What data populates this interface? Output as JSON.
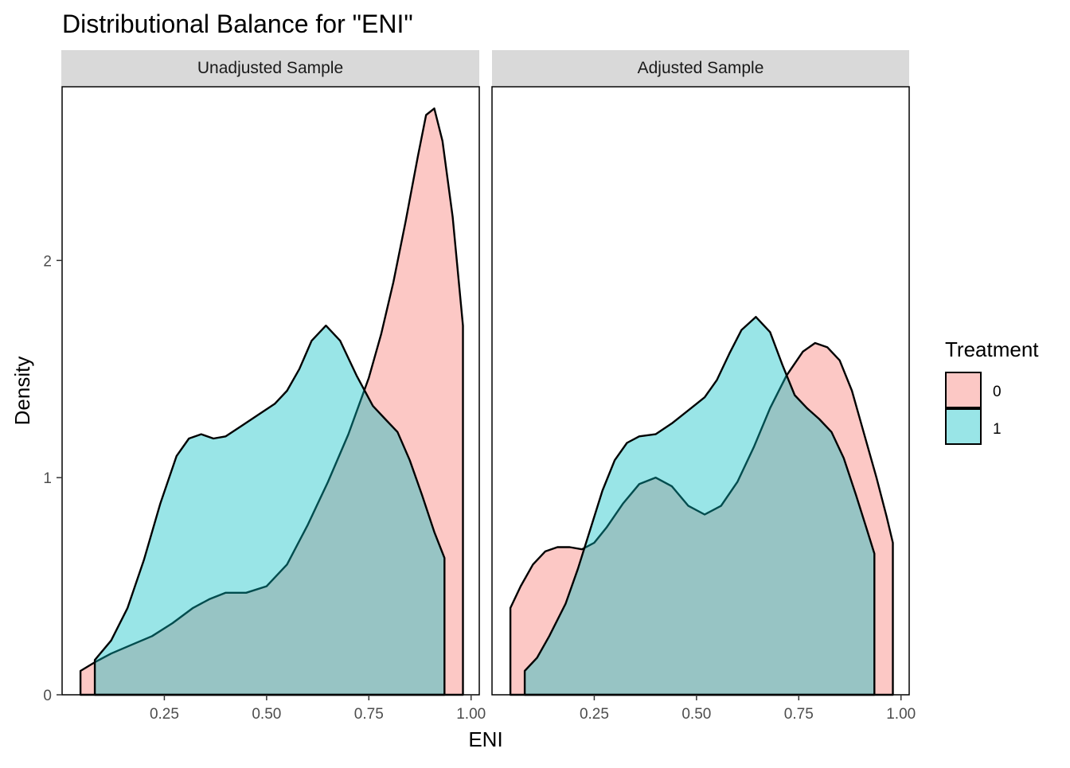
{
  "title": "Distributional Balance for \"ENI\"",
  "chart_data": {
    "type": "area",
    "title": "Distributional Balance for \"ENI\"",
    "xlabel": "ENI",
    "ylabel": "Density",
    "xlim": [
      0.0,
      1.02
    ],
    "ylim": [
      0,
      2.8
    ],
    "x_ticks": [
      0.25,
      0.5,
      0.75,
      1.0
    ],
    "x_tick_labels": [
      "0.25",
      "0.50",
      "0.75",
      "1.00"
    ],
    "y_ticks": [
      0,
      1,
      2
    ],
    "y_tick_labels": [
      "0",
      "1",
      "2"
    ],
    "legend": {
      "title": "Treatment",
      "position": "right",
      "entries": [
        {
          "label": "0",
          "color": "#F8766D"
        },
        {
          "label": "1",
          "color": "#00BFC4"
        }
      ]
    },
    "panels": [
      {
        "label": "Unadjusted Sample",
        "series": [
          {
            "name": "0",
            "color": "#F8766D",
            "points": [
              [
                0.045,
                0.11
              ],
              [
                0.08,
                0.15
              ],
              [
                0.12,
                0.19
              ],
              [
                0.17,
                0.23
              ],
              [
                0.22,
                0.27
              ],
              [
                0.27,
                0.33
              ],
              [
                0.32,
                0.4
              ],
              [
                0.36,
                0.44
              ],
              [
                0.4,
                0.47
              ],
              [
                0.45,
                0.47
              ],
              [
                0.5,
                0.5
              ],
              [
                0.55,
                0.6
              ],
              [
                0.6,
                0.78
              ],
              [
                0.65,
                0.98
              ],
              [
                0.7,
                1.2
              ],
              [
                0.75,
                1.46
              ],
              [
                0.78,
                1.66
              ],
              [
                0.81,
                1.9
              ],
              [
                0.84,
                2.18
              ],
              [
                0.87,
                2.48
              ],
              [
                0.89,
                2.67
              ],
              [
                0.91,
                2.7
              ],
              [
                0.93,
                2.55
              ],
              [
                0.955,
                2.2
              ],
              [
                0.98,
                1.7
              ]
            ]
          },
          {
            "name": "1",
            "color": "#00BFC4",
            "points": [
              [
                0.08,
                0.16
              ],
              [
                0.12,
                0.25
              ],
              [
                0.16,
                0.4
              ],
              [
                0.2,
                0.62
              ],
              [
                0.24,
                0.88
              ],
              [
                0.28,
                1.1
              ],
              [
                0.31,
                1.18
              ],
              [
                0.34,
                1.2
              ],
              [
                0.37,
                1.18
              ],
              [
                0.4,
                1.19
              ],
              [
                0.44,
                1.24
              ],
              [
                0.48,
                1.29
              ],
              [
                0.52,
                1.34
              ],
              [
                0.55,
                1.4
              ],
              [
                0.58,
                1.5
              ],
              [
                0.61,
                1.63
              ],
              [
                0.645,
                1.7
              ],
              [
                0.68,
                1.63
              ],
              [
                0.72,
                1.47
              ],
              [
                0.76,
                1.33
              ],
              [
                0.79,
                1.27
              ],
              [
                0.82,
                1.21
              ],
              [
                0.85,
                1.08
              ],
              [
                0.88,
                0.92
              ],
              [
                0.91,
                0.75
              ],
              [
                0.935,
                0.63
              ]
            ]
          }
        ]
      },
      {
        "label": "Adjusted Sample",
        "series": [
          {
            "name": "0",
            "color": "#F8766D",
            "points": [
              [
                0.045,
                0.4
              ],
              [
                0.07,
                0.5
              ],
              [
                0.1,
                0.6
              ],
              [
                0.13,
                0.66
              ],
              [
                0.16,
                0.68
              ],
              [
                0.19,
                0.68
              ],
              [
                0.22,
                0.67
              ],
              [
                0.25,
                0.7
              ],
              [
                0.28,
                0.77
              ],
              [
                0.32,
                0.88
              ],
              [
                0.36,
                0.97
              ],
              [
                0.4,
                1.0
              ],
              [
                0.44,
                0.96
              ],
              [
                0.48,
                0.87
              ],
              [
                0.52,
                0.83
              ],
              [
                0.56,
                0.87
              ],
              [
                0.6,
                0.98
              ],
              [
                0.64,
                1.14
              ],
              [
                0.68,
                1.32
              ],
              [
                0.72,
                1.47
              ],
              [
                0.76,
                1.58
              ],
              [
                0.79,
                1.62
              ],
              [
                0.82,
                1.6
              ],
              [
                0.85,
                1.54
              ],
              [
                0.88,
                1.4
              ],
              [
                0.91,
                1.2
              ],
              [
                0.94,
                1.0
              ],
              [
                0.965,
                0.82
              ],
              [
                0.98,
                0.7
              ]
            ]
          },
          {
            "name": "1",
            "color": "#00BFC4",
            "points": [
              [
                0.08,
                0.11
              ],
              [
                0.11,
                0.17
              ],
              [
                0.14,
                0.27
              ],
              [
                0.18,
                0.42
              ],
              [
                0.21,
                0.58
              ],
              [
                0.24,
                0.76
              ],
              [
                0.27,
                0.94
              ],
              [
                0.3,
                1.08
              ],
              [
                0.33,
                1.16
              ],
              [
                0.36,
                1.19
              ],
              [
                0.4,
                1.2
              ],
              [
                0.44,
                1.25
              ],
              [
                0.48,
                1.31
              ],
              [
                0.52,
                1.37
              ],
              [
                0.55,
                1.45
              ],
              [
                0.58,
                1.57
              ],
              [
                0.61,
                1.68
              ],
              [
                0.645,
                1.74
              ],
              [
                0.68,
                1.67
              ],
              [
                0.71,
                1.52
              ],
              [
                0.74,
                1.38
              ],
              [
                0.77,
                1.32
              ],
              [
                0.8,
                1.27
              ],
              [
                0.83,
                1.21
              ],
              [
                0.86,
                1.09
              ],
              [
                0.89,
                0.92
              ],
              [
                0.915,
                0.77
              ],
              [
                0.935,
                0.65
              ]
            ]
          }
        ]
      }
    ]
  }
}
